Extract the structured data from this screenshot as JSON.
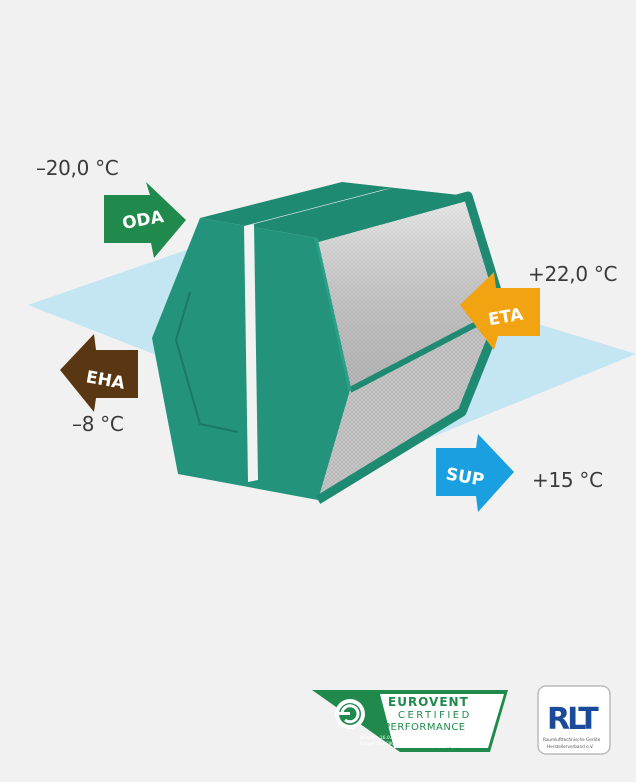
{
  "temperatures": {
    "oda": "–20,0 °C",
    "eta": "+22,0 °C",
    "eha": "–8 °C",
    "sup": "+15 °C"
  },
  "arrows": {
    "oda": {
      "label": "ODA",
      "color": "#1f8a4c"
    },
    "eta": {
      "label": "ETA",
      "color": "#f2a312"
    },
    "eha": {
      "label": "EHA",
      "color": "#5a3713"
    },
    "sup": {
      "label": "SUP",
      "color": "#1a9fe0"
    }
  },
  "logos": {
    "eurovent": {
      "title": "EUROVENT",
      "line1": "CERTIFIED",
      "line2": "PERFORMANCE",
      "ahu": "AHU N°: 16.03.003",
      "range": "Range: KLASIK",
      "url": "www.eurovent-certification.com"
    },
    "rlt": {
      "mark": "RLT",
      "line1": "Raumlufttechnische Geräte",
      "line2": "Herstellerverband e.V."
    }
  },
  "colors": {
    "background": "#f1f1f1",
    "plane": "#bfe3f2",
    "casing": "#23937b",
    "casing_dark": "#1c7866"
  }
}
